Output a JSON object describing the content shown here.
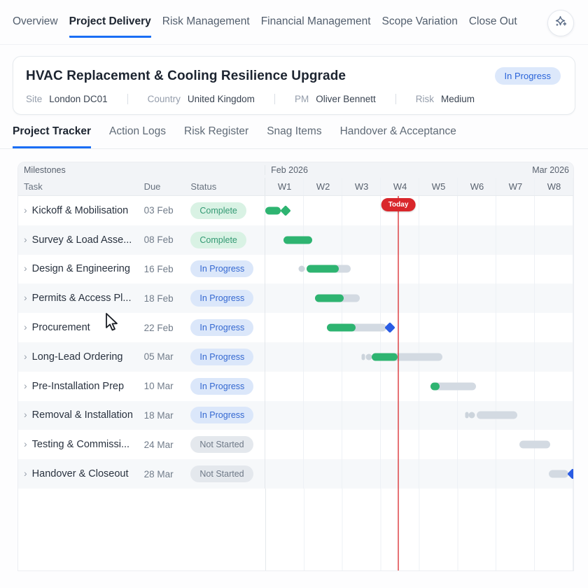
{
  "nav": {
    "items": [
      {
        "label": "Overview",
        "active": false
      },
      {
        "label": "Project Delivery",
        "active": true
      },
      {
        "label": "Risk Management",
        "active": false
      },
      {
        "label": "Financial Management",
        "active": false
      },
      {
        "label": "Scope Variation",
        "active": false
      },
      {
        "label": "Close Out",
        "active": false
      }
    ]
  },
  "project": {
    "title": "HVAC Replacement & Cooling Resilience Upgrade",
    "status_badge": "In Progress",
    "meta": [
      {
        "label": "Site",
        "value": "London DC01"
      },
      {
        "label": "Country",
        "value": "United Kingdom"
      },
      {
        "label": "PM",
        "value": "Oliver Bennett"
      },
      {
        "label": "Risk",
        "value": "Medium"
      }
    ]
  },
  "tabs": {
    "items": [
      {
        "label": "Project Tracker",
        "active": true
      },
      {
        "label": "Action Logs",
        "active": false
      },
      {
        "label": "Risk Register",
        "active": false
      },
      {
        "label": "Snag Items",
        "active": false
      },
      {
        "label": "Handover & Acceptance",
        "active": false
      }
    ]
  },
  "gantt": {
    "group_label": "Milestones",
    "columns": {
      "task": "Task",
      "due": "Due",
      "status": "Status"
    },
    "months": [
      {
        "label": "Feb 2026"
      },
      {
        "label": "Mar 2026"
      }
    ],
    "weeks": [
      "W1",
      "W2",
      "W3",
      "W4",
      "W5",
      "W6",
      "W7",
      "W8"
    ],
    "today": {
      "label": "Today",
      "position_pct": 43.0
    },
    "rows": [
      {
        "task": "Kickoff & Mobilisation",
        "due": "03 Feb",
        "status": "Complete",
        "status_key": "complete",
        "bar": {
          "progress": {
            "start": 0,
            "width": 5.0
          },
          "diamond": {
            "center": 6.6,
            "color": "green"
          }
        }
      },
      {
        "task": "Survey & Load Asse...",
        "due": "08 Feb",
        "status": "Complete",
        "status_key": "complete",
        "bar": {
          "progress": {
            "start": 5.9,
            "width": 9.3
          }
        }
      },
      {
        "task": "Design & Engineering",
        "due": "16 Feb",
        "status": "In Progress",
        "status_key": "in-progress",
        "bar": {
          "lead_dots": [
            {
              "center": 11.9,
              "w": 9
            }
          ],
          "track": {
            "start": 13.3,
            "width": 14.3
          },
          "progress": {
            "start": 13.3,
            "width": 10.6
          }
        }
      },
      {
        "task": "Permits & Access Pl...",
        "due": "18 Feb",
        "status": "In Progress",
        "status_key": "in-progress",
        "bar": {
          "track": {
            "start": 16.1,
            "width": 14.5
          },
          "progress": {
            "start": 16.1,
            "width": 9.3
          }
        }
      },
      {
        "task": "Procurement",
        "due": "22 Feb",
        "status": "In Progress",
        "status_key": "in-progress",
        "bar": {
          "track": {
            "start": 19.9,
            "width": 19.5
          },
          "progress": {
            "start": 19.9,
            "width": 9.3
          },
          "diamond": {
            "center": 40.5,
            "color": "blue"
          }
        }
      },
      {
        "task": "Long-Lead Ordering",
        "due": "05 Mar",
        "status": "In Progress",
        "status_key": "in-progress",
        "bar": {
          "lead_dots": [
            {
              "center": 31.9,
              "w": 5
            },
            {
              "center": 33.7,
              "w": 9
            }
          ],
          "track": {
            "start": 34.6,
            "width": 22.9
          },
          "progress": {
            "start": 34.6,
            "width": 8.4
          }
        }
      },
      {
        "task": "Pre-Installation Prep",
        "due": "10 Mar",
        "status": "In Progress",
        "status_key": "in-progress",
        "bar": {
          "track": {
            "start": 53.6,
            "width": 14.9
          },
          "progress": {
            "start": 53.6,
            "width": 3.0
          }
        }
      },
      {
        "task": "Removal & Installation",
        "due": "18 Mar",
        "status": "In Progress",
        "status_key": "in-progress",
        "bar": {
          "lead_dots": [
            {
              "center": 65.4,
              "w": 5
            },
            {
              "center": 67.0,
              "w": 9
            }
          ],
          "track": {
            "start": 68.6,
            "width": 13.3
          }
        }
      },
      {
        "task": "Testing & Commissi...",
        "due": "24 Mar",
        "status": "Not Started",
        "status_key": "not-started",
        "bar": {
          "track": {
            "start": 82.4,
            "width": 10.2
          }
        }
      },
      {
        "task": "Handover & Closeout",
        "due": "28 Mar",
        "status": "Not Started",
        "status_key": "not-started",
        "bar": {
          "track": {
            "start": 92.1,
            "width": 6.3
          },
          "diamond": {
            "center": 99.8,
            "color": "blue"
          }
        }
      }
    ]
  },
  "colors": {
    "accent_blue": "#1a6ef5",
    "bar_green": "#2eb471",
    "bar_track": "#d3dae2",
    "milestone_blue": "#2a5ce4",
    "today_red": "#d9262b",
    "badge_complete_bg": "#d9f2e4",
    "badge_complete_text": "#339973",
    "badge_inprogress_bg": "#dbe7fa",
    "badge_inprogress_text": "#3468d1",
    "badge_notstarted_bg": "#e4e8ed",
    "badge_notstarted_text": "#6e7987"
  }
}
